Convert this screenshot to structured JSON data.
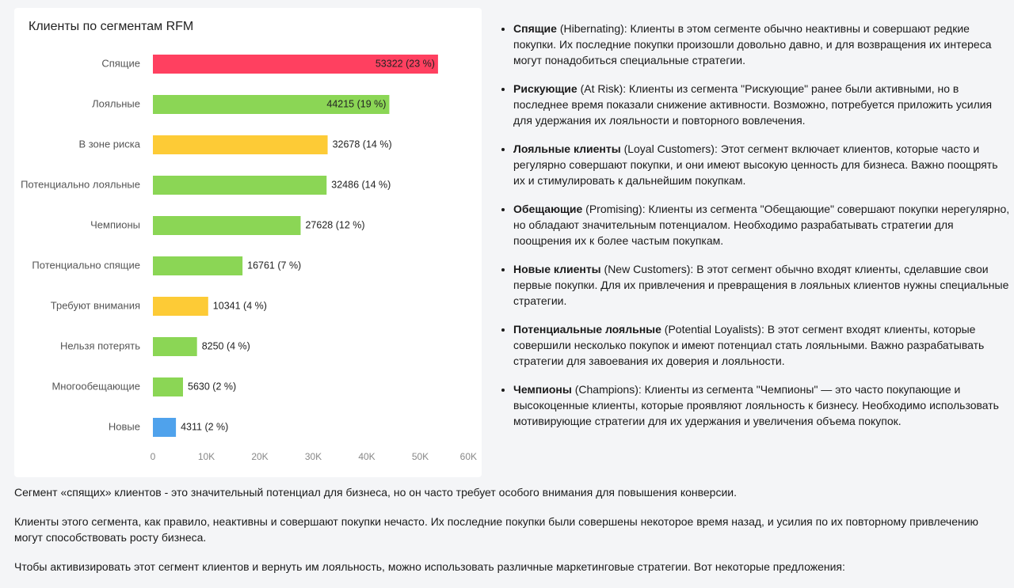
{
  "chart_data": {
    "type": "hbar",
    "title": "Клиенты по сегментам RFM",
    "categories": [
      "Спящие",
      "Лояльные",
      "В зоне риска",
      "Потенциально лояльные",
      "Чемпионы",
      "Потенциально спящие",
      "Требуют внимания",
      "Нельзя потерять",
      "Многообещающие",
      "Новые"
    ],
    "values": [
      53322,
      44215,
      32678,
      32486,
      27628,
      16761,
      10341,
      8250,
      5630,
      4311
    ],
    "value_labels": [
      "53322 (23 %)",
      "44215 (19 %)",
      "32678 (14 %)",
      "32486 (14 %)",
      "27628 (12 %)",
      "16761 (7 %)",
      "10341 (4 %)",
      "8250 (4 %)",
      "5630 (2 %)",
      "4311 (2 %)"
    ],
    "colors": [
      "#ff4060",
      "#8bd655",
      "#fdcb36",
      "#8bd655",
      "#8bd655",
      "#8bd655",
      "#fdcb36",
      "#8bd655",
      "#8bd655",
      "#4fa2ec"
    ],
    "xlim": [
      0,
      60000
    ],
    "xticks": [
      0,
      {
        "value": 10000,
        "label": "10K"
      },
      {
        "value": 20000,
        "label": "20K"
      },
      {
        "value": 30000,
        "label": "30K"
      },
      {
        "value": 40000,
        "label": "40K"
      },
      {
        "value": 50000,
        "label": "50K"
      },
      {
        "value": 60000,
        "label": "60K"
      }
    ]
  },
  "segments": [
    {
      "term": "Спящие",
      "text": " (Hibernating): Клиенты в этом сегменте обычно неактивны и совершают редкие покупки. Их последние покупки произошли довольно давно, и для возвращения их интереса могут понадобиться специальные стратегии."
    },
    {
      "term": "Рискующие",
      "text": " (At Risk): Клиенты из сегмента \"Рискующие\" ранее были активными, но в последнее время показали снижение активности. Возможно, потребуется приложить усилия для удержания их лояльности и повторного вовлечения."
    },
    {
      "term": "Лояльные клиенты",
      "text": " (Loyal Customers): Этот сегмент включает клиентов, которые часто и регулярно совершают покупки, и они имеют высокую ценность для бизнеса. Важно поощрять их и стимулировать к дальнейшим покупкам."
    },
    {
      "term": "Обещающие",
      "text": " (Promising): Клиенты из сегмента \"Обещающие\" совершают покупки нерегулярно, но обладают значительным потенциалом. Необходимо разрабатывать стратегии для поощрения их к более частым покупкам."
    },
    {
      "term": "Новые клиенты",
      "text": " (New Customers): В этот сегмент обычно входят клиенты, сделавшие свои первые покупки. Для их привлечения и превращения в лояльных клиентов нужны специальные стратегии."
    },
    {
      "term": "Потенциальные лояльные",
      "text": " (Potential Loyalists): В этот сегмент входят клиенты, которые совершили несколько покупок и имеют потенциал стать лояльными. Важно разрабатывать стратегии для завоевания их доверия и лояльности."
    },
    {
      "term": "Чемпионы",
      "text": " (Champions): Клиенты из сегмента \"Чемпионы\" — это часто покупающие и высокоценные клиенты, которые проявляют лояльность к бизнесу. Необходимо использовать мотивирующие стратегии для их удержания и увеличения объема покупок."
    }
  ],
  "paragraphs": [
    "Сегмент «спящих» клиентов - это значительный потенциал для бизнеса, но он часто требует особого внимания для повышения конверсии.",
    "Клиенты этого сегмента, как правило, неактивны и совершают покупки нечасто. Их последние покупки были совершены некоторое время назад, и усилия по их повторному привлечению могут способствовать росту бизнеса.",
    "Чтобы активизировать этот сегмент клиентов и вернуть им лояльность, можно использовать различные маркетинговые стратегии. Вот некоторые предложения:"
  ]
}
